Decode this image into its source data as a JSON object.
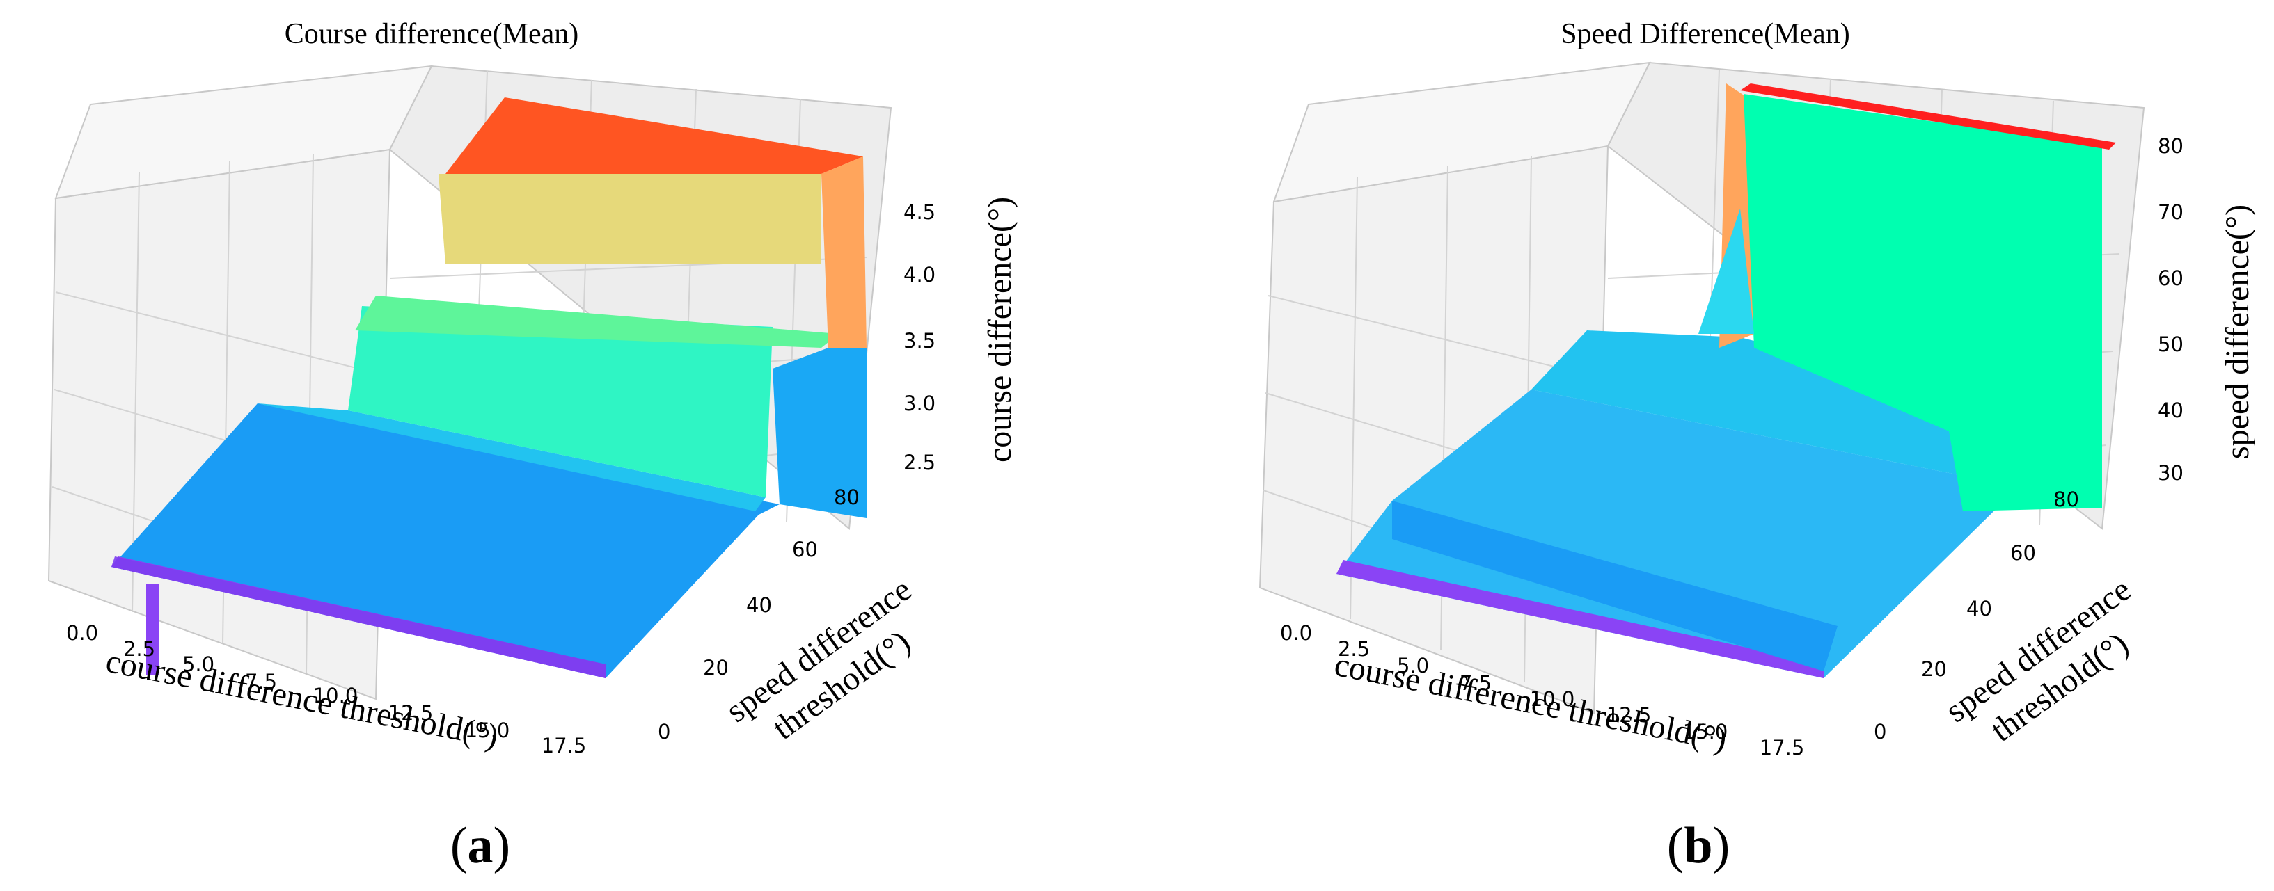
{
  "chart_data": [
    {
      "type": "surface3d",
      "panel": "(a)",
      "panel_letter": "a",
      "title": "Course difference(Mean)",
      "xlabel": "course difference threshold(°)",
      "ylabel_line1": "speed difference",
      "ylabel_line2": "threshold(°)",
      "zlabel": "course difference(°)",
      "x_ticks": [
        "0.0",
        "2.5",
        "5.0",
        "7.5",
        "10.0",
        "12.5",
        "15.0",
        "17.5"
      ],
      "y_ticks": [
        "0",
        "20",
        "40",
        "60",
        "80"
      ],
      "z_ticks": [
        "2.5",
        "3.0",
        "3.5",
        "4.0",
        "4.5"
      ],
      "xlim": [
        0,
        19
      ],
      "ylim": [
        0,
        90
      ],
      "zlim": [
        2.1,
        4.9
      ],
      "steps": [
        {
          "y": 0,
          "z": 2.2,
          "color": "#8a44f5"
        },
        {
          "y": 5,
          "z": 2.45,
          "color": "#1a9cf5"
        },
        {
          "y": 30,
          "z": 2.9,
          "color": "#22c3f0"
        },
        {
          "y": 50,
          "z": 3.55,
          "color": "#2ff5c4"
        },
        {
          "y": 65,
          "z": 4.1,
          "color": "#5ef59a"
        },
        {
          "y": 75,
          "z": 4.35,
          "color": "#e6d97a"
        },
        {
          "y": 90,
          "z": 4.85,
          "color": "#ff5522"
        }
      ]
    },
    {
      "type": "surface3d",
      "panel": "(b)",
      "panel_letter": "b",
      "title": "Speed Difference(Mean)",
      "xlabel": "course difference threshold(°)",
      "ylabel_line1": "speed difference",
      "ylabel_line2": "threshold(°)",
      "zlabel": "speed difference(°)",
      "x_ticks": [
        "0.0",
        "2.5",
        "5.0",
        "7.5",
        "10.0",
        "12.5",
        "15.0",
        "17.5"
      ],
      "y_ticks": [
        "0",
        "20",
        "40",
        "60",
        "80"
      ],
      "z_ticks": [
        "30",
        "40",
        "50",
        "60",
        "70",
        "80"
      ],
      "xlim": [
        0,
        19
      ],
      "ylim": [
        0,
        90
      ],
      "zlim": [
        24,
        82
      ],
      "steps": [
        {
          "y": 0,
          "z": 26,
          "color": "#8a44f5"
        },
        {
          "y": 8,
          "z": 33,
          "color": "#1a9cf5"
        },
        {
          "y": 55,
          "z": 38,
          "color": "#2bb8f5"
        },
        {
          "y": 62,
          "z": 78,
          "color": "#00ffb0"
        },
        {
          "y": 90,
          "z": 80,
          "color": "#ff2020"
        }
      ]
    }
  ]
}
